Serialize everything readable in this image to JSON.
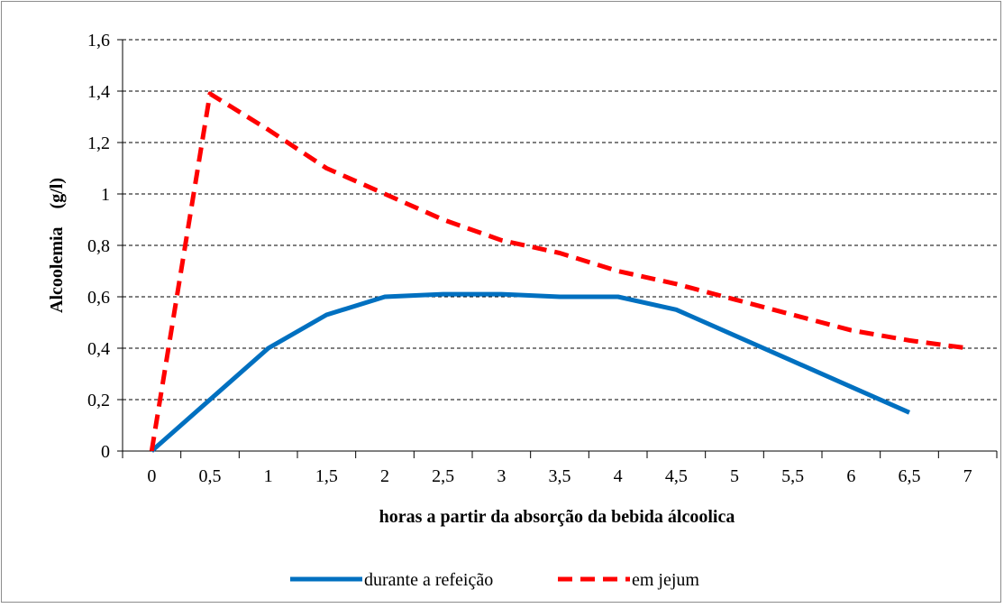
{
  "chart_data": {
    "type": "line",
    "title": "",
    "xlabel": "horas a partir da absorção da bebida álcoolica",
    "ylabel": "Alcoolemia    (g/l)",
    "categories": [
      "0",
      "0,5",
      "1",
      "1,5",
      "2",
      "2,5",
      "3",
      "3,5",
      "4",
      "4,5",
      "5",
      "5,5",
      "6",
      "6,5",
      "7"
    ],
    "x": [
      0,
      0.5,
      1,
      1.5,
      2,
      2.5,
      3,
      3.5,
      4,
      4.5,
      5,
      5.5,
      6,
      6.5,
      7
    ],
    "ylim": [
      0,
      1.6
    ],
    "yticks": [
      0,
      0.2,
      0.4,
      0.6,
      0.8,
      1,
      1.2,
      1.4,
      1.6
    ],
    "ytick_labels": [
      "0",
      "0,2",
      "0,4",
      "0,6",
      "0,8",
      "1",
      "1,2",
      "1,4",
      "1,6"
    ],
    "grid": "horizontal dashed",
    "legend_position": "bottom",
    "series": [
      {
        "name": "durante a refeição",
        "color": "#0070C0",
        "style": "solid",
        "values": [
          0,
          0.2,
          0.4,
          0.53,
          0.6,
          0.61,
          0.61,
          0.6,
          0.6,
          0.55,
          0.45,
          0.35,
          0.25,
          0.15,
          null
        ]
      },
      {
        "name": "em jejum",
        "color": "#FF0000",
        "style": "dashed",
        "values": [
          0,
          1.39,
          1.25,
          1.1,
          1.0,
          0.9,
          0.82,
          0.77,
          0.7,
          0.65,
          0.59,
          0.53,
          0.47,
          0.43,
          0.4
        ]
      }
    ]
  }
}
